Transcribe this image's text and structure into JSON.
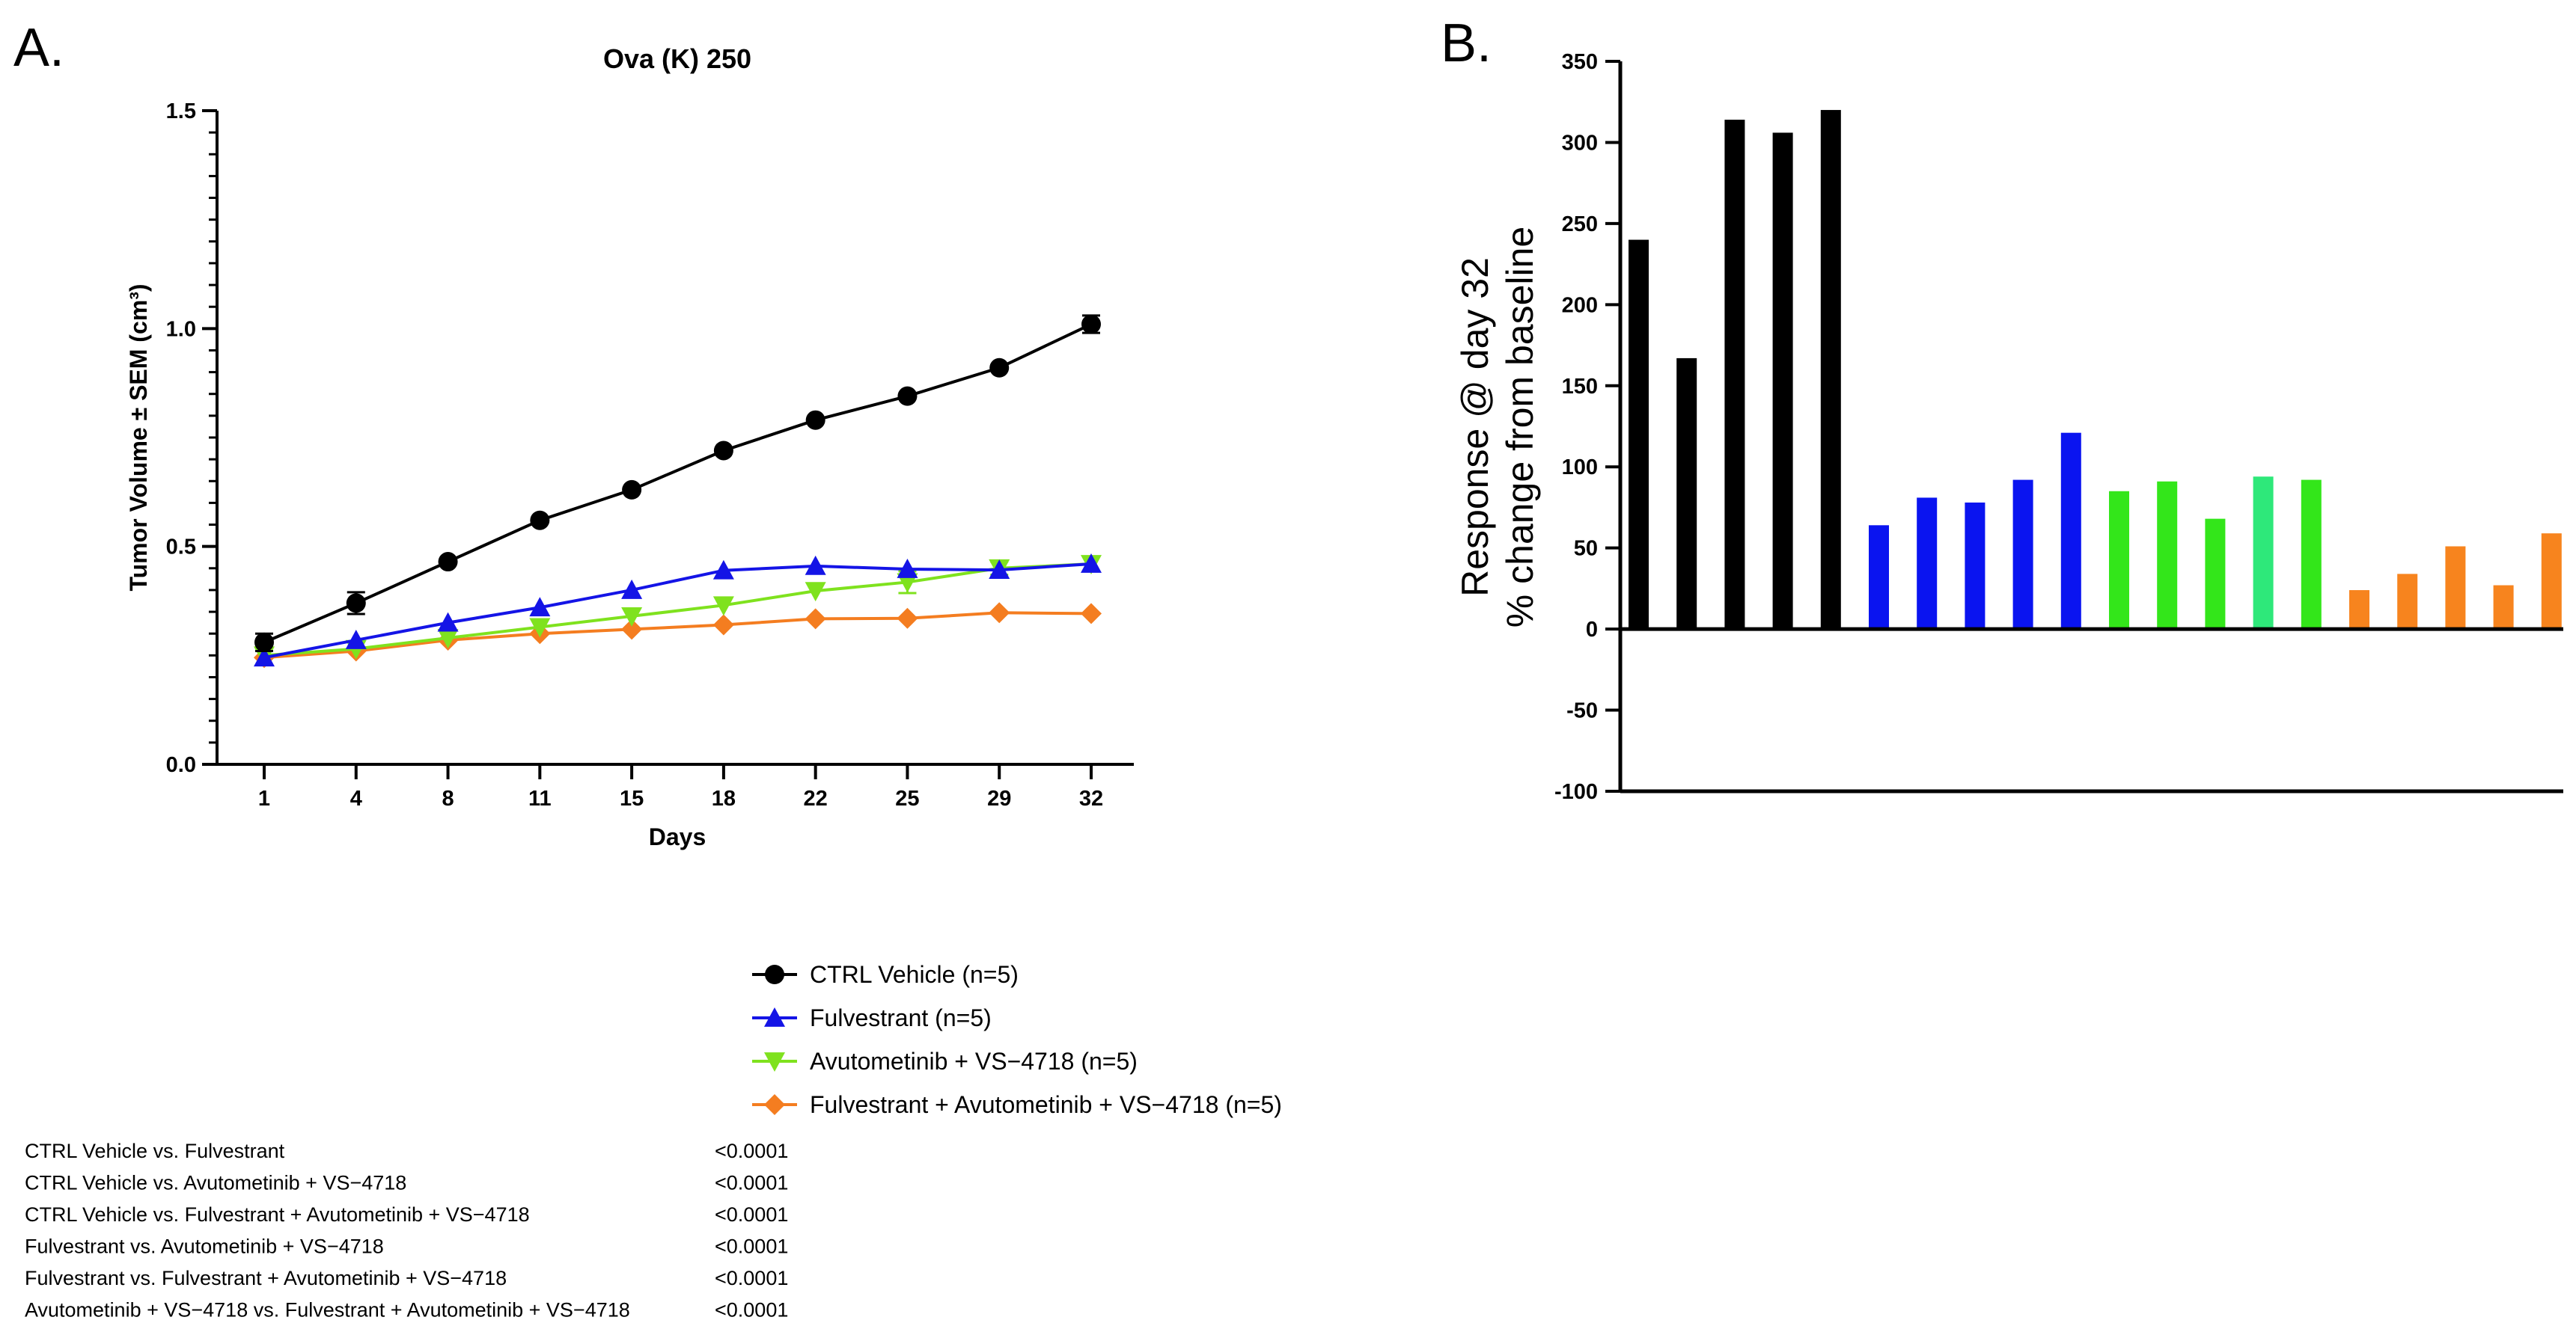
{
  "panel_a": {
    "letter": "A."
  },
  "panel_b": {
    "letter": "B."
  },
  "chart_data": [
    {
      "type": "line",
      "title": "Ova (K) 250",
      "xlabel": "Days",
      "ylabel": "Tumor Volume ± SEM (cm³)",
      "x": [
        1,
        4,
        8,
        11,
        15,
        18,
        22,
        25,
        29,
        32
      ],
      "ylim": [
        0.0,
        1.5
      ],
      "yticks": [
        "0.0",
        "0.5",
        "1.0",
        "1.5"
      ],
      "grid": false,
      "legend_position": "below",
      "series": [
        {
          "name": "CTRL Vehicle (n=5)",
          "marker": "circle",
          "color": "#000000",
          "values": [
            0.28,
            0.37,
            0.465,
            0.56,
            0.63,
            0.72,
            0.79,
            0.845,
            0.91,
            1.01
          ],
          "errors": [
            0.02,
            0.025,
            0.0,
            0.0,
            0.0,
            0.0,
            0.0,
            0.0,
            0.0,
            0.02
          ]
        },
        {
          "name": "Fulvestrant (n=5)",
          "marker": "triangle-up",
          "color": "#1414e6",
          "values": [
            0.245,
            0.285,
            0.325,
            0.36,
            0.4,
            0.445,
            0.455,
            0.448,
            0.446,
            0.46
          ],
          "errors": [
            0.0,
            0.0,
            0.0,
            0.0,
            0.0,
            0.0,
            0.0,
            0.0,
            0.0,
            0.0
          ]
        },
        {
          "name": "Avutometinib + VS−4718 (n=5)",
          "marker": "triangle-down",
          "color": "#7fe21e",
          "values": [
            0.25,
            0.265,
            0.29,
            0.315,
            0.34,
            0.365,
            0.398,
            0.418,
            0.45,
            0.46
          ],
          "errors": [
            0.0,
            0.0,
            0.0,
            0.0,
            0.0,
            0.0,
            0.0,
            0.025,
            0.015,
            0.0
          ]
        },
        {
          "name": "Fulvestrant + Avutometinib + VS−4718 (n=5)",
          "marker": "diamond",
          "color": "#f47d20",
          "values": [
            0.245,
            0.26,
            0.285,
            0.3,
            0.31,
            0.32,
            0.334,
            0.335,
            0.348,
            0.346
          ],
          "errors": [
            0.0,
            0.0,
            0.0,
            0.0,
            0.0,
            0.0,
            0.0,
            0.0,
            0.0,
            0.0
          ]
        }
      ]
    },
    {
      "type": "bar",
      "ylabel_lines": [
        "Response @ day 32",
        "% change from baseline"
      ],
      "ylim": [
        -100,
        350
      ],
      "yticks": [
        "-100",
        "-50",
        "0",
        "50",
        "100",
        "150",
        "200",
        "250",
        "300",
        "350"
      ],
      "grid": false,
      "values": [
        240,
        167,
        314,
        306,
        320,
        64,
        81,
        78,
        92,
        121,
        85,
        91,
        68,
        94,
        92,
        24,
        34,
        51,
        27,
        59
      ],
      "colors": [
        "#000000",
        "#000000",
        "#000000",
        "#000000",
        "#000000",
        "#0a14f0",
        "#0a14f0",
        "#0a14f0",
        "#0a14f0",
        "#0a14f0",
        "#33e61a",
        "#33e61a",
        "#33e61a",
        "#2ee87a",
        "#33e61a",
        "#f7841e",
        "#f7841e",
        "#f7841e",
        "#f7841e",
        "#f7841e"
      ]
    }
  ],
  "stats": {
    "rows": [
      {
        "label": "CTRL Vehicle  vs. Fulvestrant",
        "p": "<0.0001"
      },
      {
        "label": "CTRL Vehicle vs. Avutometinib + VS−4718",
        "p": "<0.0001"
      },
      {
        "label": "CTRL Vehicle vs. Fulvestrant + Avutometinib + VS−4718",
        "p": "<0.0001"
      },
      {
        "label": "Fulvestrant vs. Avutometinib + VS−4718",
        "p": "<0.0001"
      },
      {
        "label": "Fulvestrant vs. Fulvestrant + Avutometinib + VS−4718",
        "p": "<0.0001"
      },
      {
        "label": "Avutometinib + VS−4718 vs. Fulvestrant + Avutometinib + VS−4718",
        "p": "<0.0001"
      }
    ]
  }
}
